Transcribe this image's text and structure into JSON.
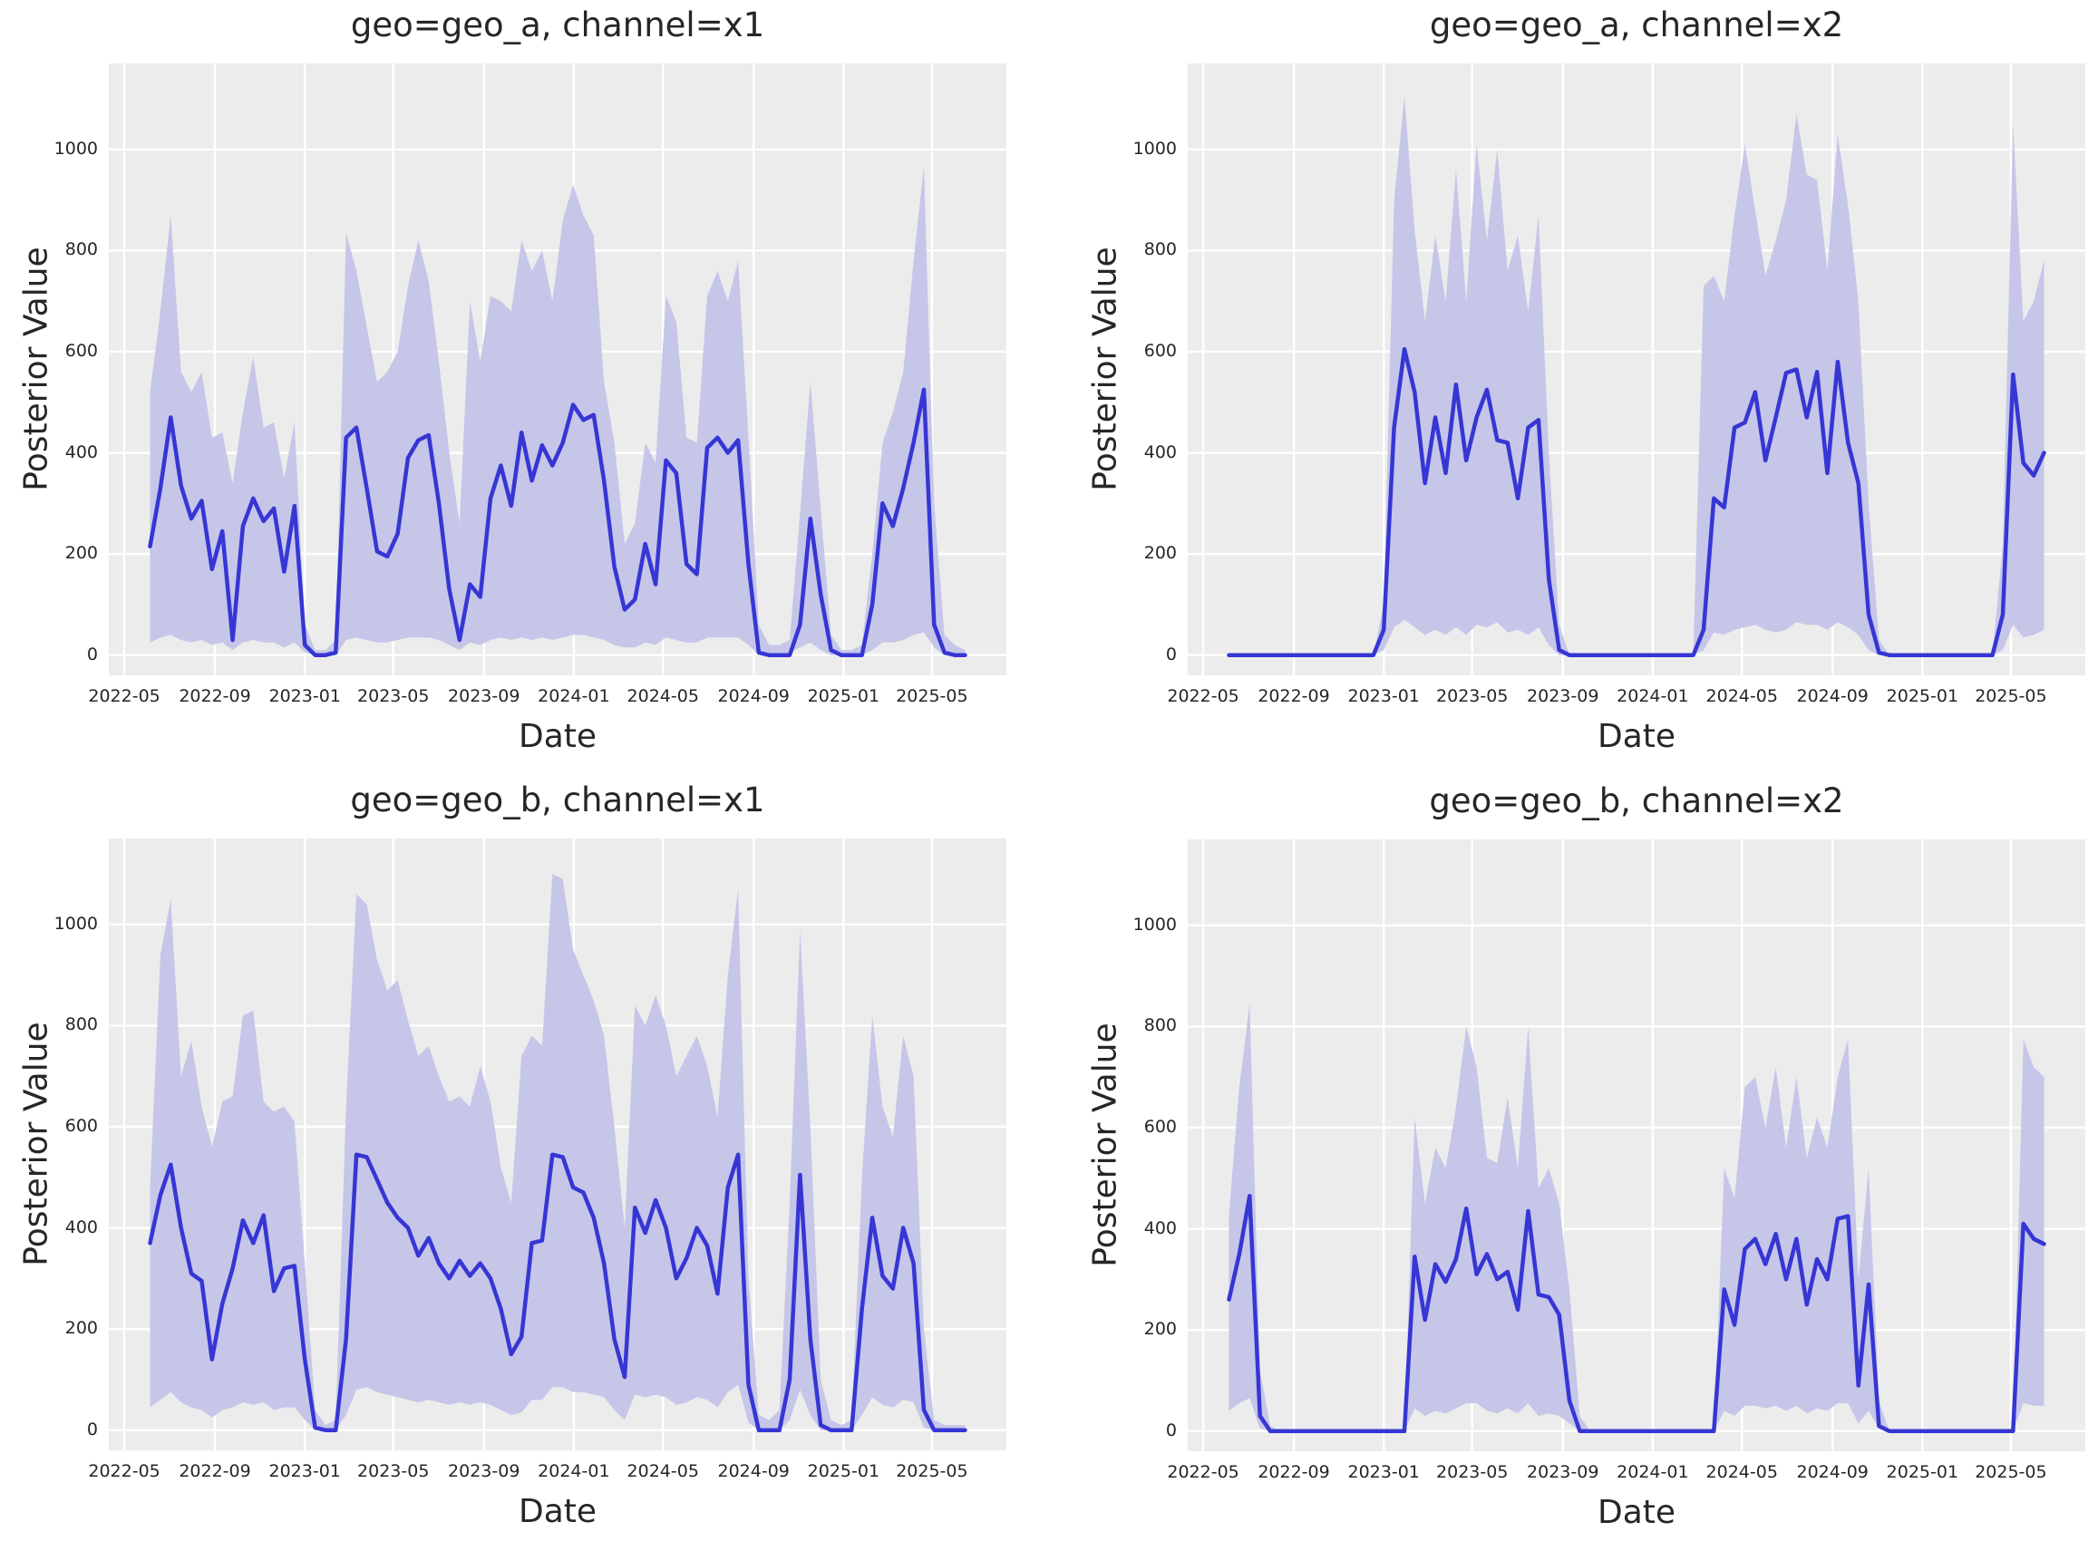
{
  "chart_data": {
    "type": "line",
    "xlabel": "Date",
    "ylabel": "Posterior Value",
    "xticks": [
      "2022-05",
      "2022-09",
      "2023-01",
      "2023-05",
      "2023-09",
      "2024-01",
      "2024-05",
      "2024-09",
      "2025-01",
      "2025-05"
    ],
    "yticks": [
      0,
      200,
      400,
      600,
      800,
      1000
    ],
    "x_domain": [
      "2022-04-10",
      "2025-08-10"
    ],
    "y_domain": [
      -40,
      1170
    ],
    "grid": {
      "major": true,
      "minor": false
    },
    "legend_position": "none",
    "colors": {
      "median_line": "#3636d5",
      "band": "#c6c6e9",
      "panel_background": "#ececec",
      "gridline": "#ffffff",
      "text": "#262626",
      "figure_background": "#ffffff"
    },
    "x": [
      "2022-06-05",
      "2022-06-19",
      "2022-07-03",
      "2022-07-17",
      "2022-07-31",
      "2022-08-14",
      "2022-08-28",
      "2022-09-11",
      "2022-09-25",
      "2022-10-09",
      "2022-10-23",
      "2022-11-06",
      "2022-11-20",
      "2022-12-04",
      "2022-12-18",
      "2023-01-01",
      "2023-01-15",
      "2023-01-29",
      "2023-02-12",
      "2023-02-26",
      "2023-03-12",
      "2023-03-26",
      "2023-04-09",
      "2023-04-23",
      "2023-05-07",
      "2023-05-21",
      "2023-06-04",
      "2023-06-18",
      "2023-07-02",
      "2023-07-16",
      "2023-07-30",
      "2023-08-13",
      "2023-08-27",
      "2023-09-10",
      "2023-09-24",
      "2023-10-08",
      "2023-10-22",
      "2023-11-05",
      "2023-11-19",
      "2023-12-03",
      "2023-12-17",
      "2023-12-31",
      "2024-01-14",
      "2024-01-28",
      "2024-02-11",
      "2024-02-25",
      "2024-03-10",
      "2024-03-24",
      "2024-04-07",
      "2024-04-21",
      "2024-05-05",
      "2024-05-19",
      "2024-06-02",
      "2024-06-16",
      "2024-06-30",
      "2024-07-14",
      "2024-07-28",
      "2024-08-11",
      "2024-08-25",
      "2024-09-08",
      "2024-09-22",
      "2024-10-06",
      "2024-10-20",
      "2024-11-03",
      "2024-11-17",
      "2024-12-01",
      "2024-12-15",
      "2024-12-29",
      "2025-01-12",
      "2025-01-26",
      "2025-02-09",
      "2025-02-23",
      "2025-03-09",
      "2025-03-23",
      "2025-04-06",
      "2025-04-20",
      "2025-05-04",
      "2025-05-18",
      "2025-06-01",
      "2025-06-15"
    ],
    "facets": [
      {
        "id": "geo_a_x1",
        "geo": "geo_a",
        "channel": "x1",
        "title": "geo=geo_a, channel=x1",
        "median": [
          215,
          330,
          470,
          335,
          270,
          305,
          170,
          245,
          30,
          255,
          310,
          265,
          290,
          165,
          295,
          20,
          0,
          0,
          5,
          430,
          450,
          330,
          205,
          195,
          240,
          390,
          425,
          435,
          300,
          130,
          30,
          140,
          115,
          310,
          375,
          295,
          440,
          345,
          415,
          375,
          420,
          495,
          465,
          475,
          345,
          175,
          90,
          110,
          220,
          140,
          385,
          360,
          180,
          160,
          410,
          430,
          400,
          425,
          180,
          5,
          0,
          0,
          0,
          60,
          270,
          120,
          10,
          0,
          0,
          0,
          100,
          300,
          255,
          330,
          420,
          525,
          60,
          5,
          0,
          0
        ],
        "lower": [
          25,
          35,
          40,
          30,
          25,
          30,
          20,
          25,
          10,
          25,
          30,
          25,
          25,
          15,
          25,
          5,
          0,
          0,
          0,
          30,
          35,
          30,
          25,
          25,
          30,
          35,
          35,
          35,
          30,
          20,
          10,
          25,
          20,
          30,
          35,
          30,
          35,
          30,
          35,
          30,
          35,
          40,
          40,
          35,
          30,
          20,
          15,
          15,
          25,
          20,
          35,
          30,
          25,
          25,
          35,
          35,
          35,
          35,
          20,
          0,
          0,
          0,
          5,
          15,
          25,
          10,
          0,
          0,
          0,
          0,
          10,
          25,
          25,
          30,
          40,
          45,
          15,
          0,
          0,
          0
        ],
        "upper": [
          520,
          680,
          870,
          560,
          520,
          560,
          430,
          440,
          340,
          480,
          590,
          450,
          460,
          350,
          460,
          60,
          10,
          10,
          30,
          835,
          760,
          650,
          540,
          560,
          600,
          730,
          820,
          740,
          580,
          400,
          260,
          700,
          580,
          710,
          700,
          680,
          820,
          760,
          800,
          700,
          860,
          930,
          870,
          830,
          540,
          420,
          220,
          260,
          420,
          380,
          710,
          660,
          430,
          420,
          710,
          760,
          700,
          780,
          430,
          60,
          20,
          20,
          30,
          280,
          540,
          290,
          40,
          10,
          10,
          20,
          200,
          420,
          480,
          560,
          780,
          965,
          300,
          40,
          20,
          10
        ]
      },
      {
        "id": "geo_a_x2",
        "geo": "geo_a",
        "channel": "x2",
        "title": "geo=geo_a, channel=x2",
        "median": [
          0,
          0,
          0,
          0,
          0,
          0,
          0,
          0,
          0,
          0,
          0,
          0,
          0,
          0,
          0,
          50,
          450,
          605,
          520,
          340,
          470,
          360,
          535,
          385,
          470,
          525,
          425,
          420,
          310,
          450,
          465,
          150,
          10,
          0,
          0,
          0,
          0,
          0,
          0,
          0,
          0,
          0,
          0,
          0,
          0,
          0,
          50,
          310,
          292,
          450,
          460,
          520,
          385,
          470,
          558,
          565,
          470,
          560,
          360,
          580,
          420,
          340,
          80,
          5,
          0,
          0,
          0,
          0,
          0,
          0,
          0,
          0,
          0,
          0,
          0,
          80,
          555,
          380,
          355,
          400
        ],
        "lower": [
          0,
          0,
          0,
          0,
          0,
          0,
          0,
          0,
          0,
          0,
          0,
          0,
          0,
          0,
          0,
          10,
          55,
          70,
          55,
          40,
          50,
          40,
          55,
          40,
          60,
          55,
          65,
          45,
          50,
          40,
          55,
          20,
          0,
          0,
          0,
          0,
          0,
          0,
          0,
          0,
          0,
          0,
          0,
          0,
          0,
          0,
          10,
          45,
          40,
          50,
          55,
          60,
          50,
          45,
          50,
          65,
          60,
          60,
          50,
          65,
          55,
          40,
          10,
          0,
          0,
          0,
          0,
          0,
          0,
          0,
          0,
          0,
          0,
          0,
          0,
          10,
          60,
          35,
          40,
          50
        ],
        "upper": [
          0,
          0,
          0,
          0,
          0,
          0,
          0,
          0,
          0,
          0,
          0,
          0,
          0,
          0,
          0,
          100,
          900,
          1105,
          840,
          660,
          830,
          700,
          960,
          700,
          1010,
          820,
          1000,
          760,
          830,
          680,
          870,
          400,
          60,
          0,
          0,
          0,
          0,
          0,
          0,
          0,
          0,
          0,
          0,
          0,
          0,
          0,
          730,
          750,
          700,
          870,
          1010,
          880,
          750,
          820,
          900,
          1070,
          950,
          940,
          760,
          1030,
          890,
          700,
          300,
          30,
          0,
          0,
          0,
          0,
          0,
          0,
          0,
          0,
          0,
          0,
          0,
          220,
          1050,
          660,
          700,
          780
        ]
      },
      {
        "id": "geo_b_x1",
        "geo": "geo_b",
        "channel": "x1",
        "title": "geo=geo_b, channel=x1",
        "median": [
          370,
          465,
          525,
          400,
          310,
          295,
          140,
          250,
          320,
          415,
          370,
          425,
          275,
          320,
          325,
          140,
          5,
          0,
          0,
          180,
          545,
          540,
          495,
          450,
          420,
          400,
          345,
          380,
          330,
          300,
          335,
          305,
          330,
          300,
          240,
          150,
          185,
          370,
          375,
          545,
          540,
          480,
          470,
          420,
          330,
          180,
          105,
          440,
          390,
          455,
          400,
          300,
          340,
          400,
          365,
          270,
          480,
          545,
          90,
          0,
          0,
          0,
          100,
          505,
          180,
          10,
          0,
          0,
          0,
          240,
          420,
          305,
          280,
          400,
          330,
          40,
          0,
          0,
          0,
          0
        ],
        "lower": [
          45,
          60,
          75,
          55,
          45,
          40,
          25,
          40,
          45,
          55,
          50,
          55,
          40,
          45,
          45,
          20,
          0,
          0,
          0,
          30,
          80,
          85,
          75,
          70,
          65,
          60,
          55,
          60,
          55,
          50,
          55,
          50,
          55,
          50,
          40,
          30,
          35,
          60,
          60,
          85,
          85,
          75,
          75,
          70,
          65,
          40,
          20,
          70,
          65,
          70,
          65,
          50,
          55,
          65,
          60,
          45,
          75,
          90,
          15,
          0,
          0,
          0,
          20,
          80,
          30,
          0,
          0,
          0,
          0,
          30,
          65,
          50,
          45,
          60,
          55,
          5,
          0,
          0,
          0,
          0
        ],
        "upper": [
          480,
          940,
          1050,
          700,
          770,
          640,
          560,
          650,
          660,
          820,
          830,
          650,
          630,
          640,
          610,
          330,
          40,
          10,
          20,
          640,
          1060,
          1040,
          930,
          870,
          890,
          810,
          740,
          760,
          700,
          650,
          660,
          640,
          720,
          650,
          520,
          450,
          740,
          780,
          760,
          1100,
          1090,
          950,
          900,
          850,
          780,
          600,
          400,
          840,
          800,
          860,
          800,
          700,
          740,
          780,
          720,
          620,
          900,
          1070,
          300,
          30,
          20,
          40,
          450,
          990,
          600,
          100,
          20,
          10,
          20,
          500,
          820,
          640,
          580,
          780,
          700,
          200,
          20,
          10,
          10,
          10
        ]
      },
      {
        "id": "geo_b_x2",
        "geo": "geo_b",
        "channel": "x2",
        "title": "geo=geo_b, channel=x2",
        "median": [
          260,
          350,
          465,
          30,
          0,
          0,
          0,
          0,
          0,
          0,
          0,
          0,
          0,
          0,
          0,
          0,
          0,
          0,
          345,
          220,
          330,
          295,
          340,
          440,
          310,
          350,
          300,
          315,
          240,
          435,
          270,
          265,
          230,
          60,
          0,
          0,
          0,
          0,
          0,
          0,
          0,
          0,
          0,
          0,
          0,
          0,
          0,
          0,
          280,
          210,
          360,
          380,
          330,
          390,
          300,
          380,
          250,
          340,
          300,
          420,
          425,
          90,
          290,
          10,
          0,
          0,
          0,
          0,
          0,
          0,
          0,
          0,
          0,
          0,
          0,
          0,
          0,
          410,
          380,
          370
        ],
        "lower": [
          40,
          55,
          65,
          5,
          0,
          0,
          0,
          0,
          0,
          0,
          0,
          0,
          0,
          0,
          0,
          0,
          0,
          0,
          45,
          30,
          40,
          35,
          45,
          55,
          55,
          40,
          35,
          45,
          35,
          55,
          30,
          35,
          30,
          15,
          0,
          0,
          0,
          0,
          0,
          0,
          0,
          0,
          0,
          0,
          0,
          0,
          0,
          0,
          40,
          30,
          50,
          50,
          45,
          50,
          40,
          50,
          35,
          45,
          40,
          55,
          55,
          15,
          40,
          5,
          0,
          0,
          0,
          0,
          0,
          0,
          0,
          0,
          0,
          0,
          0,
          0,
          0,
          55,
          50,
          50
        ],
        "upper": [
          430,
          680,
          845,
          120,
          10,
          0,
          0,
          0,
          0,
          0,
          0,
          0,
          0,
          0,
          0,
          0,
          0,
          0,
          620,
          450,
          560,
          520,
          640,
          800,
          720,
          540,
          530,
          660,
          520,
          800,
          480,
          520,
          450,
          280,
          30,
          0,
          0,
          0,
          0,
          0,
          0,
          0,
          0,
          0,
          0,
          0,
          0,
          0,
          520,
          460,
          680,
          700,
          600,
          720,
          560,
          700,
          540,
          620,
          560,
          700,
          775,
          300,
          520,
          60,
          0,
          0,
          0,
          0,
          0,
          0,
          0,
          0,
          0,
          0,
          0,
          0,
          0,
          775,
          720,
          700
        ]
      }
    ]
  }
}
